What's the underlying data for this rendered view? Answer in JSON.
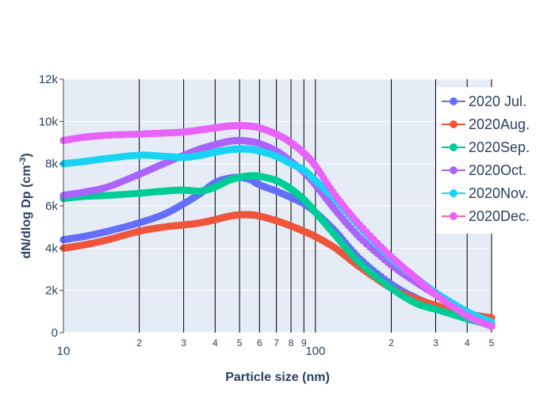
{
  "chart_data": {
    "type": "scatter",
    "xscale": "log",
    "xlabel": "Particle size (nm)",
    "ylabel_main": "dN/dlog Dp (cm",
    "ylabel_sup": "-3",
    "ylabel_close": ")",
    "xlim": [
      10,
      500
    ],
    "ylim": [
      0,
      12000
    ],
    "y_ticks": [
      {
        "value": 0,
        "label": "0"
      },
      {
        "value": 2000,
        "label": "2k"
      },
      {
        "value": 4000,
        "label": "4k"
      },
      {
        "value": 6000,
        "label": "6k"
      },
      {
        "value": 8000,
        "label": "8k"
      },
      {
        "value": 10000,
        "label": "10k"
      },
      {
        "value": 12000,
        "label": "12k"
      }
    ],
    "x_ticks": [
      {
        "value": 10,
        "label": "10",
        "major": true
      },
      {
        "value": 20,
        "label": "2",
        "major": false
      },
      {
        "value": 30,
        "label": "3",
        "major": false
      },
      {
        "value": 40,
        "label": "4",
        "major": false
      },
      {
        "value": 50,
        "label": "5",
        "major": false
      },
      {
        "value": 60,
        "label": "6",
        "major": false
      },
      {
        "value": 70,
        "label": "7",
        "major": false
      },
      {
        "value": 80,
        "label": "8",
        "major": false
      },
      {
        "value": 90,
        "label": "9",
        "major": false
      },
      {
        "value": 100,
        "label": "100",
        "major": true
      },
      {
        "value": 200,
        "label": "2",
        "major": false
      },
      {
        "value": 300,
        "label": "3",
        "major": false
      },
      {
        "value": 400,
        "label": "4",
        "major": false
      },
      {
        "value": 500,
        "label": "5",
        "major": false
      }
    ],
    "legend_position": "top-right",
    "series": [
      {
        "name": "2020 Jul.",
        "color": "#636efa",
        "x": [
          10,
          12,
          15,
          20,
          25,
          30,
          35,
          40,
          45,
          50,
          55,
          60,
          70,
          80,
          90,
          100,
          120,
          150,
          200,
          250,
          300,
          400,
          500
        ],
        "y": [
          4400,
          4550,
          4800,
          5200,
          5600,
          6100,
          6600,
          7100,
          7300,
          7350,
          7250,
          7000,
          6700,
          6400,
          6100,
          5700,
          4800,
          3500,
          2300,
          1650,
          1250,
          700,
          400
        ]
      },
      {
        "name": "2020Aug.",
        "color": "#ef553b",
        "x": [
          10,
          12,
          15,
          20,
          25,
          30,
          35,
          40,
          45,
          50,
          55,
          60,
          70,
          80,
          90,
          100,
          120,
          150,
          200,
          250,
          300,
          400,
          500
        ],
        "y": [
          4000,
          4150,
          4400,
          4800,
          5000,
          5100,
          5200,
          5350,
          5500,
          5580,
          5580,
          5520,
          5300,
          5050,
          4800,
          4550,
          4000,
          3100,
          2100,
          1600,
          1300,
          900,
          700
        ]
      },
      {
        "name": "2020Sep.",
        "color": "#00cc96",
        "x": [
          10,
          12,
          15,
          20,
          25,
          30,
          35,
          40,
          45,
          50,
          55,
          60,
          70,
          80,
          90,
          100,
          120,
          150,
          200,
          250,
          300,
          400,
          500
        ],
        "y": [
          6350,
          6450,
          6500,
          6600,
          6700,
          6750,
          6700,
          6900,
          7200,
          7350,
          7420,
          7400,
          7200,
          6800,
          6300,
          5700,
          4600,
          3300,
          2100,
          1400,
          1100,
          650,
          350
        ]
      },
      {
        "name": "2020Oct.",
        "color": "#ab63fa",
        "x": [
          10,
          12,
          15,
          20,
          25,
          30,
          35,
          40,
          45,
          50,
          55,
          60,
          70,
          80,
          90,
          100,
          120,
          150,
          200,
          250,
          300,
          400,
          500
        ],
        "y": [
          6500,
          6650,
          6900,
          7500,
          8000,
          8400,
          8700,
          8900,
          9050,
          9100,
          9050,
          8950,
          8600,
          8100,
          7600,
          7000,
          5800,
          4500,
          3200,
          2400,
          1800,
          900,
          400
        ]
      },
      {
        "name": "2020Nov.",
        "color": "#19d3f3",
        "x": [
          10,
          12,
          15,
          20,
          25,
          30,
          35,
          40,
          45,
          50,
          55,
          60,
          70,
          80,
          90,
          100,
          120,
          150,
          200,
          250,
          300,
          400,
          500
        ],
        "y": [
          8000,
          8100,
          8250,
          8400,
          8350,
          8300,
          8400,
          8550,
          8650,
          8700,
          8680,
          8600,
          8350,
          8000,
          7700,
          7200,
          6300,
          5000,
          3500,
          2600,
          1900,
          1000,
          500
        ]
      },
      {
        "name": "2020Dec.",
        "color": "#ff6692",
        "pointColor": "#e763fa",
        "x": [
          10,
          12,
          15,
          20,
          25,
          30,
          35,
          40,
          45,
          50,
          55,
          60,
          70,
          80,
          90,
          100,
          120,
          150,
          200,
          250,
          300,
          400,
          500
        ],
        "y": [
          9100,
          9250,
          9350,
          9400,
          9450,
          9500,
          9600,
          9700,
          9780,
          9800,
          9780,
          9700,
          9400,
          9000,
          8500,
          7900,
          6500,
          5100,
          3600,
          2600,
          1800,
          800,
          300
        ]
      }
    ]
  }
}
